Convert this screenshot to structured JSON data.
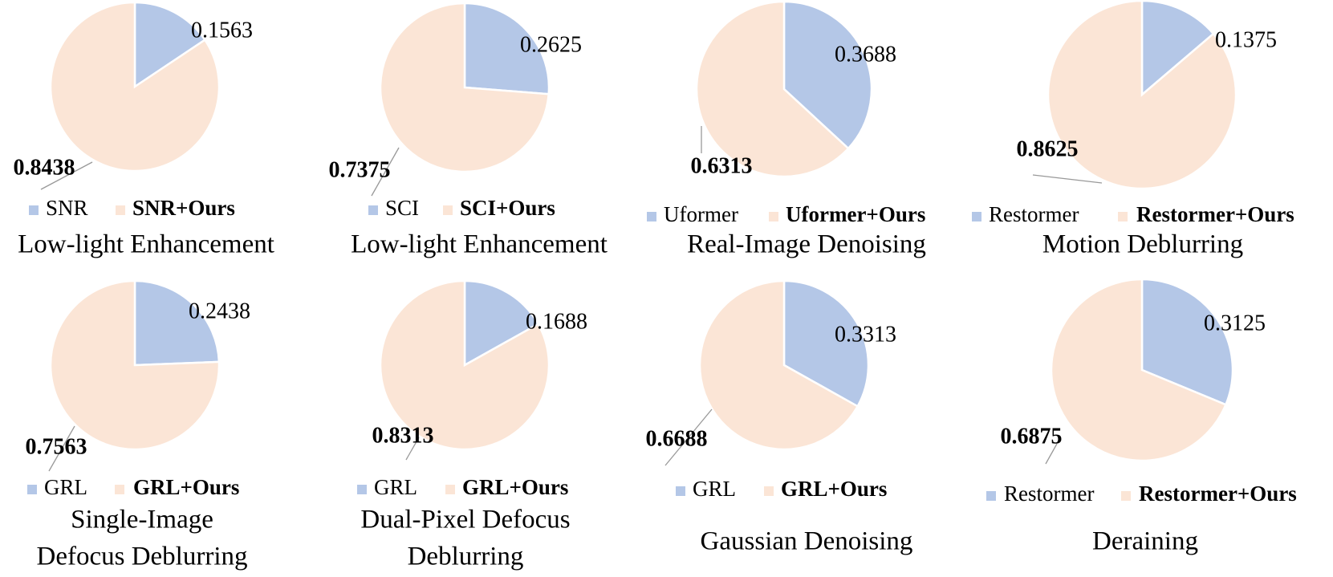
{
  "colors": {
    "baseline": "#b4c7e7",
    "ours": "#fbe5d6",
    "leader": "#999999"
  },
  "chart_data": [
    {
      "type": "pie",
      "caption": [
        "Low-light Enhancement"
      ],
      "slices": [
        {
          "label": "SNR",
          "value": 0.1563,
          "display": "0.1563"
        },
        {
          "label": "SNR+Ours",
          "value": 0.8438,
          "display": "0.8438"
        }
      ]
    },
    {
      "type": "pie",
      "caption": [
        "Low-light Enhancement"
      ],
      "slices": [
        {
          "label": "SCI",
          "value": 0.2625,
          "display": "0.2625"
        },
        {
          "label": "SCI+Ours",
          "value": 0.7375,
          "display": "0.7375"
        }
      ]
    },
    {
      "type": "pie",
      "caption": [
        "Real-Image Denoising"
      ],
      "slices": [
        {
          "label": "Uformer",
          "value": 0.3688,
          "display": "0.3688"
        },
        {
          "label": "Uformer+Ours",
          "value": 0.6313,
          "display": "0.6313"
        }
      ]
    },
    {
      "type": "pie",
      "caption": [
        "Motion Deblurring"
      ],
      "slices": [
        {
          "label": "Restormer",
          "value": 0.1375,
          "display": "0.1375"
        },
        {
          "label": "Restormer+Ours",
          "value": 0.8625,
          "display": "0.8625"
        }
      ]
    },
    {
      "type": "pie",
      "caption": [
        "Single-Image",
        "Defocus Deblurring"
      ],
      "slices": [
        {
          "label": "GRL",
          "value": 0.2438,
          "display": "0.2438"
        },
        {
          "label": "GRL+Ours",
          "value": 0.7563,
          "display": "0.7563"
        }
      ]
    },
    {
      "type": "pie",
      "caption": [
        "Dual-Pixel Defocus",
        "Deblurring"
      ],
      "slices": [
        {
          "label": "GRL",
          "value": 0.1688,
          "display": "0.1688"
        },
        {
          "label": "GRL+Ours",
          "value": 0.8313,
          "display": "0.8313"
        }
      ]
    },
    {
      "type": "pie",
      "caption": [
        "Gaussian Denoising"
      ],
      "slices": [
        {
          "label": "GRL",
          "value": 0.3313,
          "display": "0.3313"
        },
        {
          "label": "GRL+Ours",
          "value": 0.6688,
          "display": "0.6688"
        }
      ]
    },
    {
      "type": "pie",
      "caption": [
        "Deraining"
      ],
      "slices": [
        {
          "label": "Restormer",
          "value": 0.3125,
          "display": "0.3125"
        },
        {
          "label": "Restormer+Ours",
          "value": 0.6875,
          "display": "0.6875"
        }
      ]
    }
  ]
}
